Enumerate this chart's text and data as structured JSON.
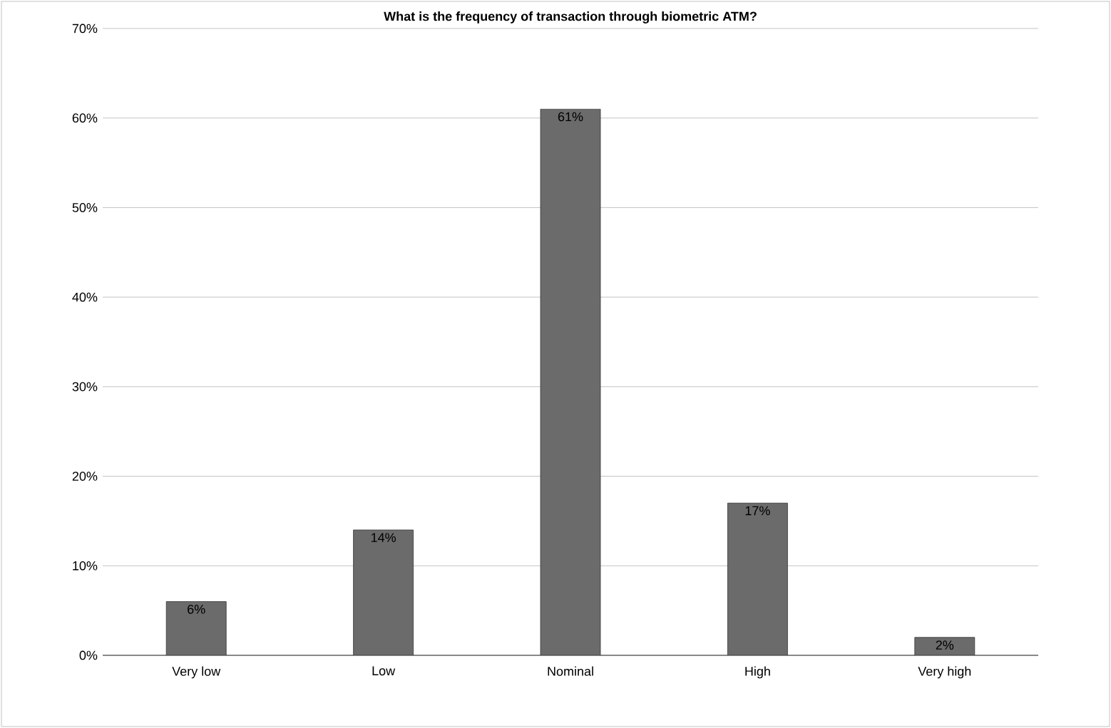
{
  "chart_data": {
    "type": "bar",
    "title": "What is the frequency of transaction through biometric ATM?",
    "categories": [
      "Very low",
      "Low",
      "Nominal",
      "High",
      "Very high"
    ],
    "values": [
      6,
      14,
      61,
      17,
      2
    ],
    "value_labels": [
      "6%",
      "14%",
      "61%",
      "17%",
      "2%"
    ],
    "color": "#6b6b6b",
    "ylim": [
      0,
      70
    ],
    "yticks": [
      {
        "value": 0,
        "label": "0%"
      },
      {
        "value": 10,
        "label": "10%"
      },
      {
        "value": 20,
        "label": "20%"
      },
      {
        "value": 30,
        "label": "30%"
      },
      {
        "value": 40,
        "label": "40%"
      },
      {
        "value": 50,
        "label": "50%"
      },
      {
        "value": 60,
        "label": "60%"
      },
      {
        "value": 70,
        "label": "70%"
      }
    ],
    "grid": "y"
  }
}
